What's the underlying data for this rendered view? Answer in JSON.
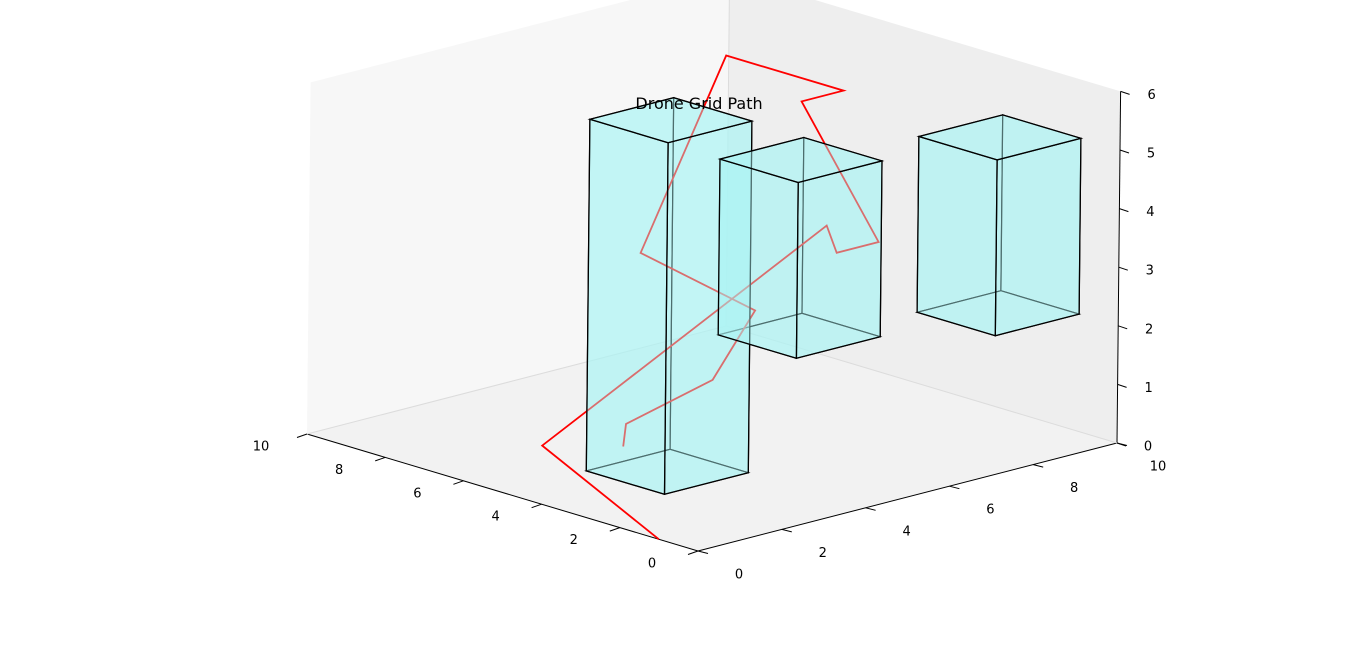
{
  "chart_data": {
    "type": "line",
    "projection": "3d",
    "title": "Drone Grid Path",
    "xlabel": "",
    "ylabel": "",
    "zlabel": "",
    "grid": false,
    "xlim": [
      0,
      10
    ],
    "ylim": [
      0,
      10
    ],
    "zlim": [
      0,
      6
    ],
    "x_ticks": [
      0,
      2,
      4,
      6,
      8,
      10
    ],
    "y_ticks": [
      0,
      2,
      4,
      6,
      8,
      10
    ],
    "z_ticks": [
      0,
      1,
      2,
      3,
      4,
      5,
      6
    ],
    "path": {
      "color": "#ff0000",
      "points": [
        {
          "x": 1,
          "y": 0,
          "z": 0
        },
        {
          "x": 4,
          "y": 0,
          "z": 1
        },
        {
          "x": 0,
          "y": 3,
          "z": 5
        },
        {
          "x": 4,
          "y": 7,
          "z": 3
        },
        {
          "x": 4,
          "y": 8,
          "z": 3
        },
        {
          "x": 6,
          "y": 8,
          "z": 5
        },
        {
          "x": 6,
          "y": 9,
          "z": 5
        },
        {
          "x": 9,
          "y": 9,
          "z": 5
        },
        {
          "x": 9,
          "y": 7,
          "z": 2
        },
        {
          "x": 5,
          "y": 6,
          "z": 2
        },
        {
          "x": 5,
          "y": 5,
          "z": 1
        },
        {
          "x": 4,
          "y": 2,
          "z": 1
        },
        {
          "x": 3,
          "y": 1,
          "z": 1
        }
      ]
    },
    "obstacles": {
      "face_color": "#aaf5f5",
      "edge_color": "#000000",
      "boxes": [
        {
          "x": [
            3,
            5
          ],
          "y": [
            2,
            4
          ],
          "z": [
            0,
            6
          ]
        },
        {
          "x": [
            5,
            7
          ],
          "y": [
            7,
            9
          ],
          "z": [
            1,
            4
          ]
        },
        {
          "x": [
            1,
            3
          ],
          "y": [
            8,
            10
          ],
          "z": [
            2,
            5
          ]
        }
      ]
    }
  }
}
